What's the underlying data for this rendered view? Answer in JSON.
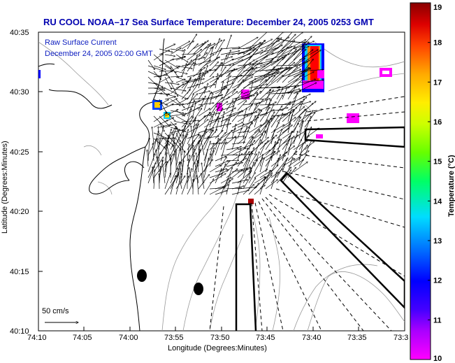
{
  "title": "RU COOL   NOAA–17  Sea Surface Temperature:  December 24, 2005 0253 GMT",
  "annotation_line1": "Raw Surface Current",
  "annotation_line2": "December 24, 2005 02:00 GMT",
  "scale_label": "50 cm/s",
  "xlabel": "Longitude (Degrees:Minutes)",
  "ylabel": "Latitude (Degrees:Minutes)",
  "colorbar_label": "Temperature (°C)",
  "colorbar": {
    "min": 10,
    "max": 19,
    "ticks": [
      "10",
      "11",
      "12",
      "13",
      "14",
      "15",
      "16",
      "17",
      "18",
      "19"
    ],
    "colors": [
      "#ff00ff",
      "#8800ff",
      "#0000ff",
      "#0088ff",
      "#00ffff",
      "#00ff44",
      "#88ff00",
      "#ffff00",
      "#ff8800",
      "#ff0000",
      "#880000"
    ]
  },
  "axes": {
    "xticks": [
      "74:10",
      "74:05",
      "74:00",
      "73:55",
      "73:50",
      "73:45",
      "73:40",
      "73:35",
      "73:3"
    ],
    "yticks": [
      "40:35",
      "40:30",
      "40:25",
      "40:20",
      "40:15",
      "40:10"
    ]
  },
  "colors": {
    "title": "#0000b0",
    "annotation": "#1020c0",
    "coast": "#000000",
    "bathymetry": "#999999"
  }
}
